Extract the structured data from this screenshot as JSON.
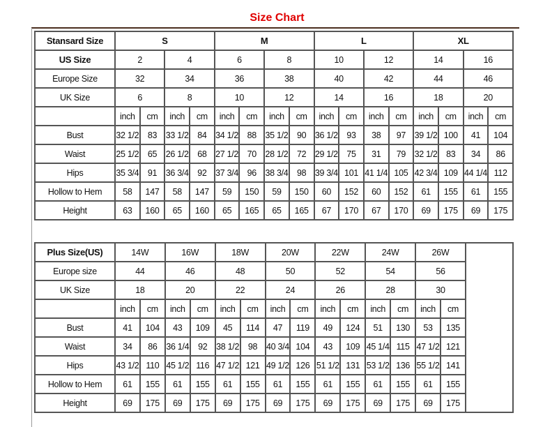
{
  "title": "Size Chart",
  "standard": {
    "header_label": "Stansard Size",
    "groups": [
      "S",
      "M",
      "L",
      "XL"
    ],
    "size_rows": [
      {
        "label": "US Size",
        "values": [
          "2",
          "4",
          "6",
          "8",
          "10",
          "12",
          "14",
          "16"
        ]
      },
      {
        "label": "Europe Size",
        "values": [
          "32",
          "34",
          "36",
          "38",
          "40",
          "42",
          "44",
          "46"
        ]
      },
      {
        "label": "UK Size",
        "values": [
          "6",
          "8",
          "10",
          "12",
          "14",
          "16",
          "18",
          "20"
        ]
      }
    ],
    "unit_labels": [
      "inch",
      "cm"
    ],
    "measure_rows": [
      {
        "label": "Bust",
        "values": [
          "32 1/2",
          "83",
          "33 1/2",
          "84",
          "34 1/2",
          "88",
          "35 1/2",
          "90",
          "36 1/2",
          "93",
          "38",
          "97",
          "39 1/2",
          "100",
          "41",
          "104"
        ]
      },
      {
        "label": "Waist",
        "values": [
          "25 1/2",
          "65",
          "26 1/2",
          "68",
          "27 1/2",
          "70",
          "28 1/2",
          "72",
          "29 1/2",
          "75",
          "31",
          "79",
          "32 1/2",
          "83",
          "34",
          "86"
        ]
      },
      {
        "label": "Hips",
        "values": [
          "35 3/4",
          "91",
          "36 3/4",
          "92",
          "37 3/4",
          "96",
          "38 3/4",
          "98",
          "39 3/4",
          "101",
          "41 1/4",
          "105",
          "42 3/4",
          "109",
          "44 1/4",
          "112"
        ]
      },
      {
        "label": "Hollow to Hem",
        "values": [
          "58",
          "147",
          "58",
          "147",
          "59",
          "150",
          "59",
          "150",
          "60",
          "152",
          "60",
          "152",
          "61",
          "155",
          "61",
          "155"
        ]
      },
      {
        "label": "Height",
        "values": [
          "63",
          "160",
          "65",
          "160",
          "65",
          "165",
          "65",
          "165",
          "67",
          "170",
          "67",
          "170",
          "69",
          "175",
          "69",
          "175"
        ]
      }
    ]
  },
  "plus": {
    "header_label": "Plus Size(US)",
    "sizes": [
      "14W",
      "16W",
      "18W",
      "20W",
      "22W",
      "24W",
      "26W"
    ],
    "size_rows": [
      {
        "label": "Europe size",
        "values": [
          "44",
          "46",
          "48",
          "50",
          "52",
          "54",
          "56"
        ]
      },
      {
        "label": "UK Size",
        "values": [
          "18",
          "20",
          "22",
          "24",
          "26",
          "28",
          "30"
        ]
      }
    ],
    "unit_labels": [
      "inch",
      "cm"
    ],
    "measure_rows": [
      {
        "label": "Bust",
        "values": [
          "41",
          "104",
          "43",
          "109",
          "45",
          "114",
          "47",
          "119",
          "49",
          "124",
          "51",
          "130",
          "53",
          "135"
        ]
      },
      {
        "label": "Waist",
        "values": [
          "34",
          "86",
          "36 1/4",
          "92",
          "38 1/2",
          "98",
          "40 3/4",
          "104",
          "43",
          "109",
          "45 1/4",
          "115",
          "47 1/2",
          "121"
        ]
      },
      {
        "label": "Hips",
        "values": [
          "43 1/2",
          "110",
          "45 1/2",
          "116",
          "47 1/2",
          "121",
          "49 1/2",
          "126",
          "51 1/2",
          "131",
          "53 1/2",
          "136",
          "55 1/2",
          "141"
        ]
      },
      {
        "label": "Hollow to Hem",
        "values": [
          "61",
          "155",
          "61",
          "155",
          "61",
          "155",
          "61",
          "155",
          "61",
          "155",
          "61",
          "155",
          "61",
          "155"
        ]
      },
      {
        "label": "Height",
        "values": [
          "69",
          "175",
          "69",
          "175",
          "69",
          "175",
          "69",
          "175",
          "69",
          "175",
          "69",
          "175",
          "69",
          "175"
        ]
      }
    ]
  }
}
